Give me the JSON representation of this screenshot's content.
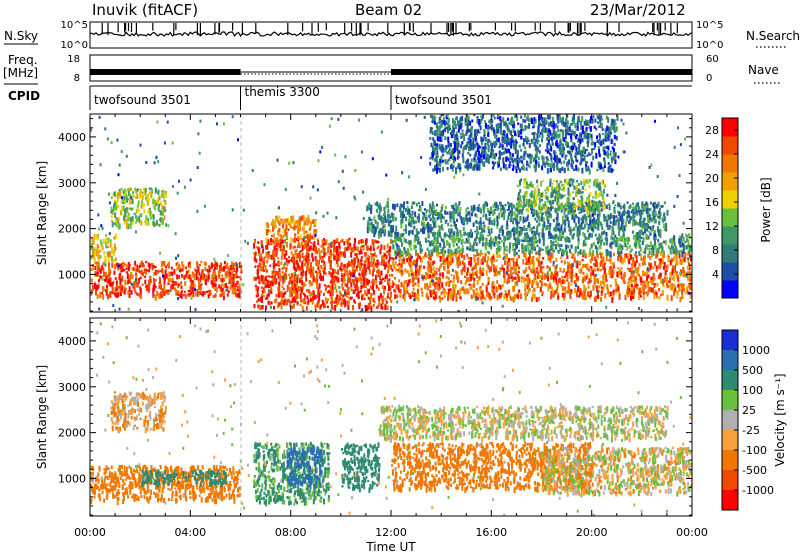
{
  "header": {
    "station": "Inuvik (fitACF)",
    "beam": "Beam 02",
    "date": "23/Mar/2012"
  },
  "top_panels": {
    "nsky_label": "N.Sky",
    "nsearch_label": "N.Search",
    "noise_ticks": [
      "10^5",
      "10^0"
    ],
    "freq_label": "Freq.",
    "freq_unit": "[MHz]",
    "freq_ticks": [
      "18",
      "8"
    ],
    "nave_label": "Nave",
    "nave_ticks": [
      "60",
      "0"
    ],
    "cpid_label": "CPID"
  },
  "cpid_segments": [
    {
      "name": "twofsound 3501",
      "start_hour": 0,
      "end_hour": 6
    },
    {
      "name": "themis 3300",
      "start_hour": 6,
      "end_hour": 12
    },
    {
      "name": "twofsound 3501",
      "start_hour": 12,
      "end_hour": 24
    }
  ],
  "chart_data": [
    {
      "type": "heatmap",
      "name": "power",
      "xlabel": "Time UT",
      "ylabel": "Slant Range [km]",
      "xlim": [
        0,
        24
      ],
      "ylim": [
        180,
        4500
      ],
      "x_tick_labels": [
        "00:00",
        "04:00",
        "08:00",
        "12:00",
        "16:00",
        "20:00",
        "00:00"
      ],
      "y_tick_labels": [
        "1000",
        "2000",
        "3000",
        "4000"
      ],
      "colorbar": {
        "label": "Power [dB]",
        "ticks": [
          "28",
          "24",
          "20",
          "16",
          "12",
          "8",
          "4"
        ],
        "range": [
          0,
          30
        ],
        "colors": [
          "#0000ff",
          "#1f4ea6",
          "#2e7d7a",
          "#3d9a66",
          "#6abf3d",
          "#f0d000",
          "#f0a000",
          "#f07800",
          "#f04800",
          "#ff0000"
        ]
      },
      "regions": [
        {
          "t0": 0.0,
          "t1": 6.0,
          "r0": 550,
          "r1": 1300,
          "level": 26
        },
        {
          "t0": 0.0,
          "t1": 1.0,
          "r0": 1300,
          "r1": 1900,
          "level": 18
        },
        {
          "t0": 0.8,
          "t1": 3.0,
          "r0": 2100,
          "r1": 2900,
          "level": 14
        },
        {
          "t0": 6.5,
          "t1": 12.0,
          "r0": 300,
          "r1": 1800,
          "level": 26
        },
        {
          "t0": 7.0,
          "t1": 9.0,
          "r0": 1800,
          "r1": 2300,
          "level": 22
        },
        {
          "t0": 12.0,
          "t1": 24.0,
          "r0": 500,
          "r1": 1500,
          "level": 24
        },
        {
          "t0": 12.0,
          "t1": 24.0,
          "r0": 1500,
          "r1": 1900,
          "level": 10
        },
        {
          "t0": 11.0,
          "t1": 23.0,
          "r0": 1900,
          "r1": 2600,
          "level": 8
        },
        {
          "t0": 17.0,
          "t1": 20.5,
          "r0": 2400,
          "r1": 3100,
          "level": 12
        },
        {
          "t0": 13.5,
          "t1": 21.0,
          "r0": 3300,
          "r1": 4500,
          "level": 6
        }
      ]
    },
    {
      "type": "heatmap",
      "name": "velocity",
      "xlabel": "Time UT",
      "ylabel": "Slant Range [km]",
      "xlim": [
        0,
        24
      ],
      "ylim": [
        180,
        4500
      ],
      "x_tick_labels": [
        "00:00",
        "04:00",
        "08:00",
        "12:00",
        "16:00",
        "20:00",
        "00:00"
      ],
      "y_tick_labels": [
        "1000",
        "2000",
        "3000",
        "4000"
      ],
      "colorbar": {
        "label": "Velocity [m s⁻¹]",
        "ticks": [
          "1000",
          "500",
          "100",
          "25",
          "-25",
          "-100",
          "-500",
          "-1000"
        ],
        "colors": [
          "#1a2fd0",
          "#2a6fb0",
          "#2e8a70",
          "#6abf3d",
          "#b0b0b0",
          "#f7a040",
          "#f07800",
          "#f04800",
          "#ff0000"
        ]
      },
      "regions": [
        {
          "t0": 0.0,
          "t1": 6.0,
          "r0": 550,
          "r1": 1300,
          "level": -300
        },
        {
          "t0": 2.0,
          "t1": 5.5,
          "r0": 900,
          "r1": 1200,
          "level": 200
        },
        {
          "t0": 6.5,
          "t1": 9.5,
          "r0": 500,
          "r1": 1800,
          "level": 150
        },
        {
          "t0": 7.8,
          "t1": 9.2,
          "r0": 900,
          "r1": 1700,
          "level": 900
        },
        {
          "t0": 10.0,
          "t1": 11.5,
          "r0": 800,
          "r1": 1800,
          "level": 200
        },
        {
          "t0": 12.0,
          "t1": 20.0,
          "r0": 800,
          "r1": 1800,
          "level": -300
        },
        {
          "t0": 18.0,
          "t1": 24.0,
          "r0": 700,
          "r1": 1700,
          "level": -20
        },
        {
          "t0": 11.5,
          "t1": 23.0,
          "r0": 1900,
          "r1": 2600,
          "level": 0
        },
        {
          "t0": 0.8,
          "t1": 3.0,
          "r0": 2100,
          "r1": 2900,
          "level": -80
        }
      ]
    }
  ]
}
